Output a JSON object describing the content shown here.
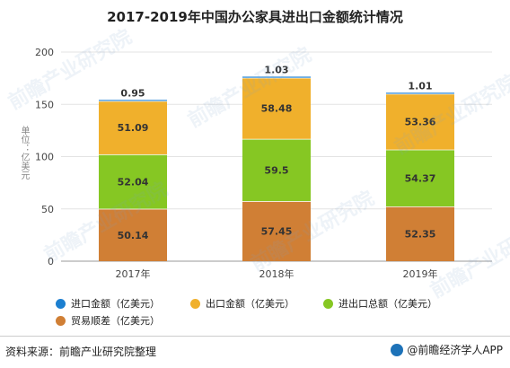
{
  "chart_data": {
    "type": "stacked-bar",
    "title": "2017-2019年中国办公家具进出口金额统计情况",
    "ylabel": "单位：亿美元",
    "categories": [
      "2017年",
      "2018年",
      "2019年"
    ],
    "yticks": [
      "0",
      "50",
      "100",
      "150",
      "200"
    ],
    "ylim": [
      0,
      200
    ],
    "series": [
      {
        "name": "贸易顺差（亿美元）",
        "values": [
          50.14,
          57.45,
          52.35
        ],
        "labels": [
          "50.14",
          "57.45",
          "52.35"
        ],
        "color": "#d07f35"
      },
      {
        "name": "进出口总额（亿美元）",
        "values": [
          52.04,
          59.5,
          54.37
        ],
        "labels": [
          "52.04",
          "59.5",
          "54.37"
        ],
        "color": "#86c723"
      },
      {
        "name": "出口金额（亿美元）",
        "values": [
          51.09,
          58.48,
          53.36
        ],
        "labels": [
          "51.09",
          "58.48",
          "53.36"
        ],
        "color": "#f0b02c"
      },
      {
        "name": "进口金额（亿美元）",
        "values": [
          0.95,
          1.03,
          1.01
        ],
        "labels": [
          "0.95",
          "1.03",
          "1.01"
        ],
        "color": "#1c7fd0"
      }
    ],
    "grid": true,
    "legend_position": "bottom"
  },
  "legend": {
    "items": [
      {
        "label": "进口金额（亿美元）",
        "color": "#1c7fd0"
      },
      {
        "label": "出口金额（亿美元）",
        "color": "#f0b02c"
      },
      {
        "label": "进出口总额（亿美元）",
        "color": "#86c723"
      },
      {
        "label": "贸易顺差（亿美元）",
        "color": "#d07f35"
      }
    ]
  },
  "footer": {
    "source": "资料来源：前瞻产业研究院整理",
    "brand": "@前瞻经济学人APP"
  },
  "watermark": "前瞻产业研究院"
}
